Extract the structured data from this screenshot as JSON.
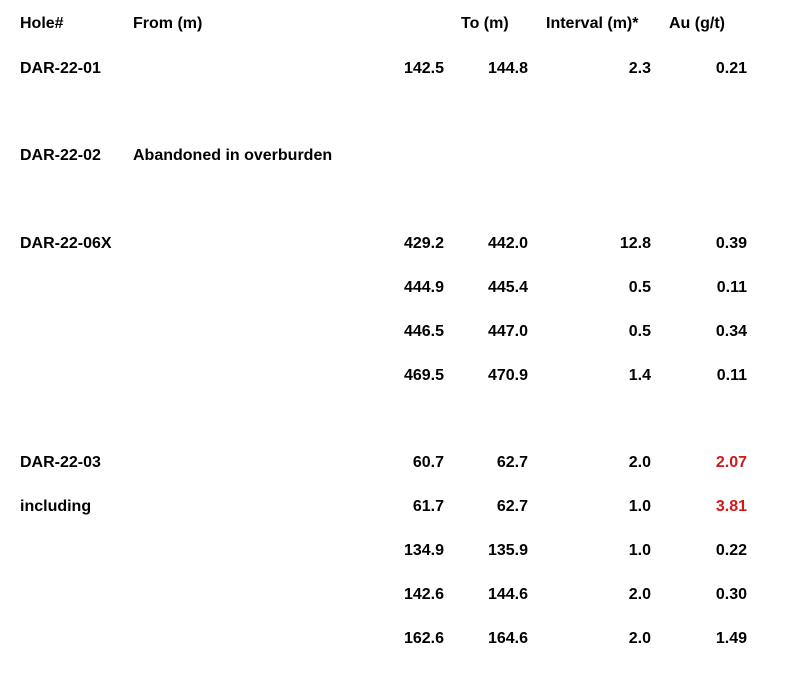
{
  "headers": {
    "hole": "Hole#",
    "from": "From (m)",
    "to": "To (m)",
    "interval": "Interval (m)*",
    "au": "Au (g/t)"
  },
  "rows": [
    {
      "hole": "DAR-22-01",
      "from": "142.5",
      "to": "144.8",
      "interval": "2.3",
      "au": "0.21"
    },
    {
      "hole": "DAR-22-02",
      "note": "Abandoned in overburden"
    },
    {
      "hole": "DAR-22-06X",
      "from": "429.2",
      "to": "442.0",
      "interval": "12.8",
      "au": "0.39"
    },
    {
      "hole": "",
      "from": "444.9",
      "to": "445.4",
      "interval": "0.5",
      "au": "0.11"
    },
    {
      "hole": "",
      "from": "446.5",
      "to": "447.0",
      "interval": "0.5",
      "au": "0.34"
    },
    {
      "hole": "",
      "from": "469.5",
      "to": "470.9",
      "interval": "1.4",
      "au": "0.11"
    },
    {
      "hole": "DAR-22-03",
      "from": "60.7",
      "to": "62.7",
      "interval": "2.0",
      "au": "2.07",
      "highlight": true
    },
    {
      "hole": "including",
      "from": "61.7",
      "to": "62.7",
      "interval": "1.0",
      "au": "3.81",
      "highlight": true
    },
    {
      "hole": "",
      "from": "134.9",
      "to": "135.9",
      "interval": "1.0",
      "au": "0.22"
    },
    {
      "hole": "",
      "from": "142.6",
      "to": "144.6",
      "interval": "2.0",
      "au": "0.30"
    },
    {
      "hole": "",
      "from": "162.6",
      "to": "164.6",
      "interval": "2.0",
      "au": "1.49"
    }
  ],
  "colors": {
    "text": "#000000",
    "highlight": "#d0181c",
    "background": "#ffffff"
  }
}
